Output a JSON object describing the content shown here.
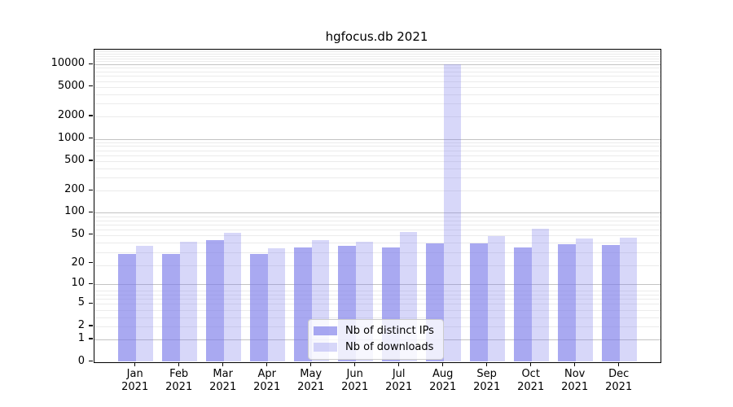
{
  "chart_data": {
    "type": "bar",
    "title": "hgfocus.db 2021",
    "months": [
      "Jan",
      "Feb",
      "Mar",
      "Apr",
      "May",
      "Jun",
      "Jul",
      "Aug",
      "Sep",
      "Oct",
      "Nov",
      "Dec"
    ],
    "year": "2021",
    "x_categories": [
      "Jan 2021",
      "Feb 2021",
      "Mar 2021",
      "Apr 2021",
      "May 2021",
      "Jun 2021",
      "Jul 2021",
      "Aug 2021",
      "Sep 2021",
      "Oct 2021",
      "Nov 2021",
      "Dec 2021"
    ],
    "series": [
      {
        "name": "Nb of distinct IPs",
        "color": "#7b7bea",
        "alpha": 0.65,
        "values": [
          27,
          27,
          42,
          27,
          34,
          35,
          34,
          38,
          38,
          34,
          37,
          36
        ]
      },
      {
        "name": "Nb of downloads",
        "color": "#7b7bea",
        "alpha": 0.3,
        "values": [
          35,
          40,
          54,
          33,
          42,
          40,
          55,
          10000,
          48,
          60,
          45,
          46
        ]
      }
    ],
    "y_axis": {
      "scale": "log10(1+x)",
      "ticks": [
        0,
        1,
        2,
        5,
        10,
        20,
        50,
        100,
        200,
        500,
        1000,
        2000,
        5000,
        10000
      ],
      "major_grid_values": [
        1,
        10,
        100,
        1000,
        10000
      ],
      "range_top": 15000
    },
    "grid": {
      "horizontal": true,
      "vertical": false,
      "minor_gridlines": true
    },
    "legend": {
      "position": "lower-center-inside"
    }
  }
}
